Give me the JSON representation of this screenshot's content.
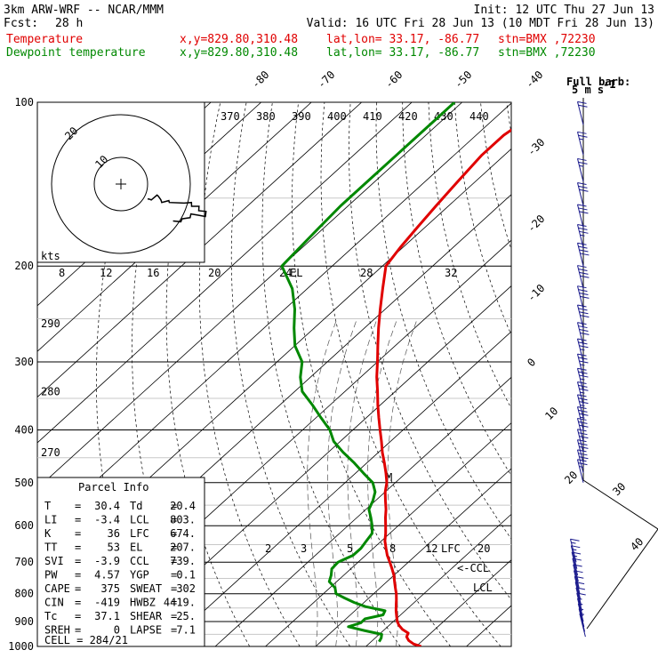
{
  "header": {
    "model": "3km ARW-WRF -- NCAR/MMM",
    "init": "Init: 12 UTC Thu 27 Jun 13",
    "fcst_label": "Fcst:",
    "fcst_value": "28 h",
    "valid": "Valid: 16 UTC Fri 28 Jun 13 (10 MDT Fri 28 Jun 13)",
    "rows": [
      {
        "name": "Temperature",
        "xy": "x,y=829.80,310.48",
        "latlon": "lat,lon= 33.17, -86.77",
        "stn": "stn=BMX ,72230",
        "color": "#e00000"
      },
      {
        "name": "Dewpoint temperature",
        "xy": "x,y=829.80,310.48",
        "latlon": "lat,lon= 33.17, -86.77",
        "stn": "stn=BMX ,72230",
        "color": "#008800"
      }
    ]
  },
  "barb_key": {
    "title": "Full barb:",
    "value": "5 m s",
    "unit_exp": "-1"
  },
  "hodograph": {
    "units": "kts",
    "ring_labels": [
      "10",
      "20"
    ]
  },
  "parcel_info": {
    "title": "Parcel Info",
    "rows": [
      [
        {
          "k": "T",
          "v": "30.4"
        },
        {
          "k": "Td",
          "v": "20.4"
        }
      ],
      [
        {
          "k": "LI",
          "v": "-3.4"
        },
        {
          "k": "LCL",
          "v": "803."
        }
      ],
      [
        {
          "k": "K",
          "v": "36"
        },
        {
          "k": "LFC",
          "v": "674."
        }
      ],
      [
        {
          "k": "TT",
          "v": "53"
        },
        {
          "k": "EL",
          "v": "207."
        }
      ],
      [
        {
          "k": "SVI",
          "v": "-3.9"
        },
        {
          "k": "CCL",
          "v": "739."
        }
      ],
      [
        {
          "k": "PW",
          "v": "4.57"
        },
        {
          "k": "YGP",
          "v": "0.1"
        }
      ],
      [
        {
          "k": "CAPE",
          "v": "375"
        },
        {
          "k": "SWEAT",
          "v": "302"
        }
      ],
      [
        {
          "k": "CIN",
          "v": "-419"
        },
        {
          "k": "HWBZ",
          "v": "4419."
        }
      ],
      [
        {
          "k": "Tc",
          "v": "37.1"
        },
        {
          "k": "SHEAR",
          "v": "25."
        }
      ],
      [
        {
          "k": "SREH",
          "v": "0"
        },
        {
          "k": "LAPSE",
          "v": "7.1"
        }
      ]
    ],
    "cell": "CELL = 284/21"
  },
  "markers": {
    "el": "EL",
    "lfc": "LFC",
    "ccl": "<-CCL",
    "lcl": "LCL",
    "m": "M"
  },
  "chart_data": {
    "type": "line",
    "pressure_levels": [
      100,
      200,
      300,
      400,
      500,
      600,
      700,
      800,
      900,
      1000
    ],
    "isotherms": [
      -80,
      -70,
      -60,
      -50,
      -40,
      -30,
      -20,
      -10,
      0,
      10,
      20,
      30,
      40
    ],
    "theta_labels": [
      {
        "v": "290",
        "p": 255
      },
      {
        "v": "280",
        "p": 340
      },
      {
        "v": "270",
        "p": 440
      }
    ],
    "theta_e_labels": [
      "370",
      "380",
      "390",
      "400",
      "410",
      "420",
      "430",
      "440"
    ],
    "mixing_upper_labels": [
      "8",
      "12",
      "16",
      "20",
      "24",
      "28",
      "32"
    ],
    "mixing_lower_labels": [
      "2",
      "3",
      "5",
      "8",
      "12",
      "20"
    ],
    "series": [
      {
        "name": "Temperature",
        "color": "#e00000",
        "p": [
          1000,
          990,
          975,
          960,
          945,
          930,
          915,
          900,
          880,
          860,
          840,
          820,
          800,
          780,
          760,
          740,
          720,
          700,
          680,
          660,
          640,
          620,
          600,
          580,
          560,
          540,
          520,
          500,
          480,
          460,
          440,
          420,
          400,
          380,
          360,
          340,
          320,
          300,
          280,
          260,
          240,
          220,
          200,
          185,
          170,
          155,
          140,
          125,
          115,
          105,
          100
        ],
        "t": [
          31,
          29,
          27.2,
          26,
          25.5,
          23.5,
          22,
          20.8,
          19.5,
          18.2,
          17,
          15.8,
          14.5,
          13,
          11.5,
          10,
          8.2,
          6.3,
          4.3,
          2.5,
          0.7,
          -0.8,
          -2.5,
          -4.3,
          -6,
          -8,
          -10,
          -11.7,
          -14,
          -16.5,
          -19.2,
          -21.8,
          -24.6,
          -27.5,
          -30.5,
          -33.5,
          -36.8,
          -40,
          -43.5,
          -47.2,
          -51,
          -55,
          -59.3,
          -60.5,
          -61.5,
          -62.5,
          -63.5,
          -64.5,
          -64.5,
          -63,
          -62
        ]
      },
      {
        "name": "Dewpoint temperature",
        "color": "#008800",
        "p": [
          980,
          965,
          950,
          935,
          920,
          905,
          890,
          875,
          860,
          845,
          830,
          815,
          800,
          780,
          760,
          740,
          720,
          700,
          680,
          660,
          640,
          620,
          600,
          580,
          560,
          540,
          520,
          500,
          480,
          460,
          440,
          420,
          400,
          380,
          360,
          340,
          320,
          300,
          280,
          260,
          240,
          220,
          200,
          185,
          170,
          155,
          140,
          125,
          115,
          105,
          100
        ],
        "t": [
          21.6,
          21.2,
          20.5,
          16.2,
          12.2,
          13.8,
          13.8,
          16.5,
          16,
          11.2,
          8,
          5.2,
          2.5,
          1,
          -1.5,
          -2.5,
          -3.8,
          -4,
          -2.5,
          -2.5,
          -3,
          -3.5,
          -5.2,
          -7.2,
          -9.4,
          -10.5,
          -12,
          -14.5,
          -18.5,
          -22.5,
          -27,
          -31.3,
          -34.6,
          -39,
          -43.5,
          -48.5,
          -52,
          -55,
          -60,
          -64,
          -68,
          -73,
          -80,
          -80.5,
          -81,
          -81.5,
          -81.5,
          -81.5,
          -81.5,
          -81.5,
          -81.5
        ]
      }
    ],
    "wind": [
      {
        "p": 110,
        "dir": 300,
        "spd": 20
      },
      {
        "p": 125,
        "dir": 295,
        "spd": 25
      },
      {
        "p": 140,
        "dir": 290,
        "spd": 25
      },
      {
        "p": 155,
        "dir": 285,
        "spd": 30
      },
      {
        "p": 170,
        "dir": 280,
        "spd": 30
      },
      {
        "p": 185,
        "dir": 280,
        "spd": 35
      },
      {
        "p": 200,
        "dir": 280,
        "spd": 40
      },
      {
        "p": 220,
        "dir": 280,
        "spd": 40
      },
      {
        "p": 240,
        "dir": 280,
        "spd": 40
      },
      {
        "p": 260,
        "dir": 275,
        "spd": 40
      },
      {
        "p": 280,
        "dir": 275,
        "spd": 40
      },
      {
        "p": 300,
        "dir": 275,
        "spd": 35
      },
      {
        "p": 320,
        "dir": 275,
        "spd": 35
      },
      {
        "p": 340,
        "dir": 270,
        "spd": 35
      },
      {
        "p": 360,
        "dir": 270,
        "spd": 35
      },
      {
        "p": 380,
        "dir": 270,
        "spd": 35
      },
      {
        "p": 400,
        "dir": 270,
        "spd": 35
      },
      {
        "p": 420,
        "dir": 270,
        "spd": 30
      },
      {
        "p": 440,
        "dir": 270,
        "spd": 30
      },
      {
        "p": 460,
        "dir": 270,
        "spd": 30
      },
      {
        "p": 480,
        "dir": 265,
        "spd": 30
      },
      {
        "p": 500,
        "dir": 265,
        "spd": 25
      },
      {
        "p": 700,
        "dir": 260,
        "spd": 15
      },
      {
        "p": 720,
        "dir": 260,
        "spd": 15
      },
      {
        "p": 740,
        "dir": 255,
        "spd": 15
      },
      {
        "p": 760,
        "dir": 255,
        "spd": 10
      },
      {
        "p": 780,
        "dir": 250,
        "spd": 10
      },
      {
        "p": 800,
        "dir": 245,
        "spd": 10
      },
      {
        "p": 820,
        "dir": 240,
        "spd": 10
      },
      {
        "p": 840,
        "dir": 230,
        "spd": 10
      },
      {
        "p": 860,
        "dir": 225,
        "spd": 10
      },
      {
        "p": 880,
        "dir": 220,
        "spd": 10
      },
      {
        "p": 900,
        "dir": 210,
        "spd": 5
      },
      {
        "p": 920,
        "dir": 200,
        "spd": 5
      },
      {
        "p": 940,
        "dir": 190,
        "spd": 5
      },
      {
        "p": 960,
        "dir": 180,
        "spd": 5
      }
    ],
    "xlabel": "",
    "ylabel": "",
    "ylim": [
      1000,
      100
    ],
    "grid": true
  }
}
